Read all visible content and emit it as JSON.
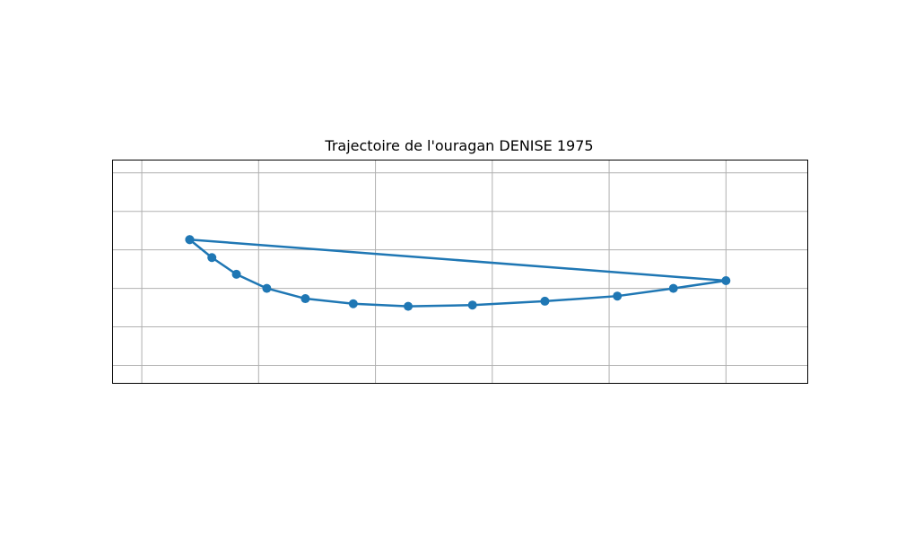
{
  "chart_data": {
    "type": "line",
    "title": "Trajectoire de l'ouragan DENISE 1975",
    "xlabel": "",
    "ylabel": "",
    "xlim": [
      -2.5,
      57
    ],
    "ylim": [
      9.3,
      18.0
    ],
    "grid": true,
    "x_gridlines": [
      0,
      10,
      20,
      30,
      40,
      50
    ],
    "y_gridlines": [
      10,
      11.5,
      13,
      14.5,
      16,
      17.5
    ],
    "series": [
      {
        "color": "#1f77b4",
        "marker": "circle",
        "x": [
          4.1,
          6.0,
          8.1,
          10.7,
          14.0,
          18.1,
          22.8,
          28.3,
          34.5,
          40.7,
          45.5,
          50.0,
          4.1
        ],
        "y": [
          14.9,
          14.2,
          13.55,
          13.0,
          12.6,
          12.4,
          12.3,
          12.35,
          12.5,
          12.7,
          13.0,
          13.3,
          14.9
        ]
      }
    ]
  }
}
